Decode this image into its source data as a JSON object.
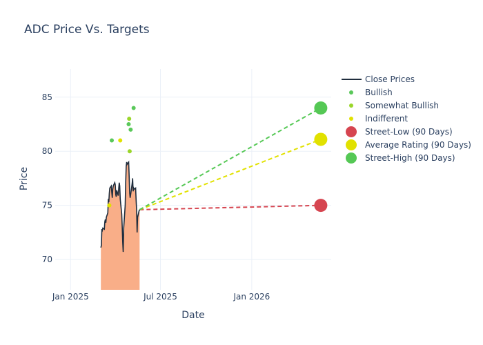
{
  "chart_data": {
    "type": "line",
    "title": "ADC Price Vs. Targets",
    "xlabel": "Date",
    "ylabel": "Price",
    "xlim": [
      "2024-12-01",
      "2026-06-10"
    ],
    "ylim": [
      67.2,
      87.6
    ],
    "x_ticks": [
      {
        "date": "2025-01-01",
        "label": "Jan 2025"
      },
      {
        "date": "2025-07-01",
        "label": "Jul 2025"
      },
      {
        "date": "2026-01-01",
        "label": "Jan 2026"
      }
    ],
    "y_ticks": [
      70,
      75,
      80,
      85
    ],
    "grid": true,
    "legend_position": "right",
    "colors": {
      "close": "#1f2d3d",
      "fill": "#f9ae88",
      "bullish": "#5ac85a",
      "somewhat_bullish": "#9ad62a",
      "indifferent": "#e1e100",
      "street_low": "#d64550",
      "average": "#e1e100",
      "street_high": "#55c855"
    },
    "series": [
      {
        "name": "Close Prices",
        "kind": "line-area",
        "points": [
          [
            "2025-03-03",
            71.1
          ],
          [
            "2025-03-04",
            71.3
          ],
          [
            "2025-03-05",
            72.8
          ],
          [
            "2025-03-06",
            72.7
          ],
          [
            "2025-03-07",
            72.9
          ],
          [
            "2025-03-10",
            72.8
          ],
          [
            "2025-03-11",
            73.5
          ],
          [
            "2025-03-12",
            73.7
          ],
          [
            "2025-03-13",
            73.4
          ],
          [
            "2025-03-14",
            73.9
          ],
          [
            "2025-03-17",
            74.3
          ],
          [
            "2025-03-18",
            75.6
          ],
          [
            "2025-03-19",
            75.3
          ],
          [
            "2025-03-20",
            76.1
          ],
          [
            "2025-03-21",
            76.6
          ],
          [
            "2025-03-24",
            76.8
          ],
          [
            "2025-03-25",
            76.2
          ],
          [
            "2025-03-26",
            75.7
          ],
          [
            "2025-03-27",
            76.5
          ],
          [
            "2025-03-28",
            76.8
          ],
          [
            "2025-03-31",
            77.1
          ],
          [
            "2025-04-01",
            76.9
          ],
          [
            "2025-04-02",
            76.0
          ],
          [
            "2025-04-03",
            75.8
          ],
          [
            "2025-04-04",
            76.4
          ],
          [
            "2025-04-07",
            75.9
          ],
          [
            "2025-04-08",
            76.6
          ],
          [
            "2025-04-09",
            77.1
          ],
          [
            "2025-04-10",
            76.8
          ],
          [
            "2025-04-11",
            75.6
          ],
          [
            "2025-04-14",
            74.2
          ],
          [
            "2025-04-15",
            73.0
          ],
          [
            "2025-04-16",
            71.6
          ],
          [
            "2025-04-17",
            70.7
          ],
          [
            "2025-04-18",
            72.9
          ],
          [
            "2025-04-21",
            75.0
          ],
          [
            "2025-04-22",
            77.1
          ],
          [
            "2025-04-23",
            78.6
          ],
          [
            "2025-04-24",
            79.0
          ],
          [
            "2025-04-25",
            78.8
          ],
          [
            "2025-04-28",
            79.0
          ],
          [
            "2025-04-29",
            77.7
          ],
          [
            "2025-04-30",
            76.2
          ],
          [
            "2025-05-01",
            75.7
          ],
          [
            "2025-05-02",
            76.0
          ],
          [
            "2025-05-05",
            77.0
          ],
          [
            "2025-05-06",
            77.5
          ],
          [
            "2025-05-07",
            76.3
          ],
          [
            "2025-05-08",
            76.6
          ],
          [
            "2025-05-09",
            76.5
          ],
          [
            "2025-05-12",
            76.6
          ],
          [
            "2025-05-13",
            75.5
          ],
          [
            "2025-05-14",
            74.6
          ],
          [
            "2025-05-15",
            72.5
          ],
          [
            "2025-05-16",
            73.9
          ],
          [
            "2025-05-19",
            74.5
          ],
          [
            "2025-05-20",
            74.6
          ]
        ]
      },
      {
        "name": "Bullish",
        "kind": "markers",
        "points": [
          [
            "2025-03-25",
            81.0
          ],
          [
            "2025-04-28",
            82.5
          ],
          [
            "2025-05-02",
            82.0
          ],
          [
            "2025-05-08",
            84.0
          ]
        ]
      },
      {
        "name": "Somewhat Bullish",
        "kind": "markers",
        "points": [
          [
            "2025-04-29",
            83.0
          ],
          [
            "2025-04-30",
            80.0
          ]
        ]
      },
      {
        "name": "Indifferent",
        "kind": "markers",
        "points": [
          [
            "2025-03-20",
            75.0
          ],
          [
            "2025-04-11",
            81.0
          ]
        ]
      },
      {
        "name": "Street-Low (90 Days)",
        "kind": "target",
        "start": [
          "2025-05-20",
          74.6
        ],
        "end": [
          "2026-05-20",
          75.0
        ]
      },
      {
        "name": "Average Rating (90 Days)",
        "kind": "target",
        "start": [
          "2025-05-20",
          74.6
        ],
        "end": [
          "2026-05-20",
          81.1
        ]
      },
      {
        "name": "Street-High (90 Days)",
        "kind": "target",
        "start": [
          "2025-05-20",
          74.6
        ],
        "end": [
          "2026-05-20",
          84.0
        ]
      }
    ]
  }
}
